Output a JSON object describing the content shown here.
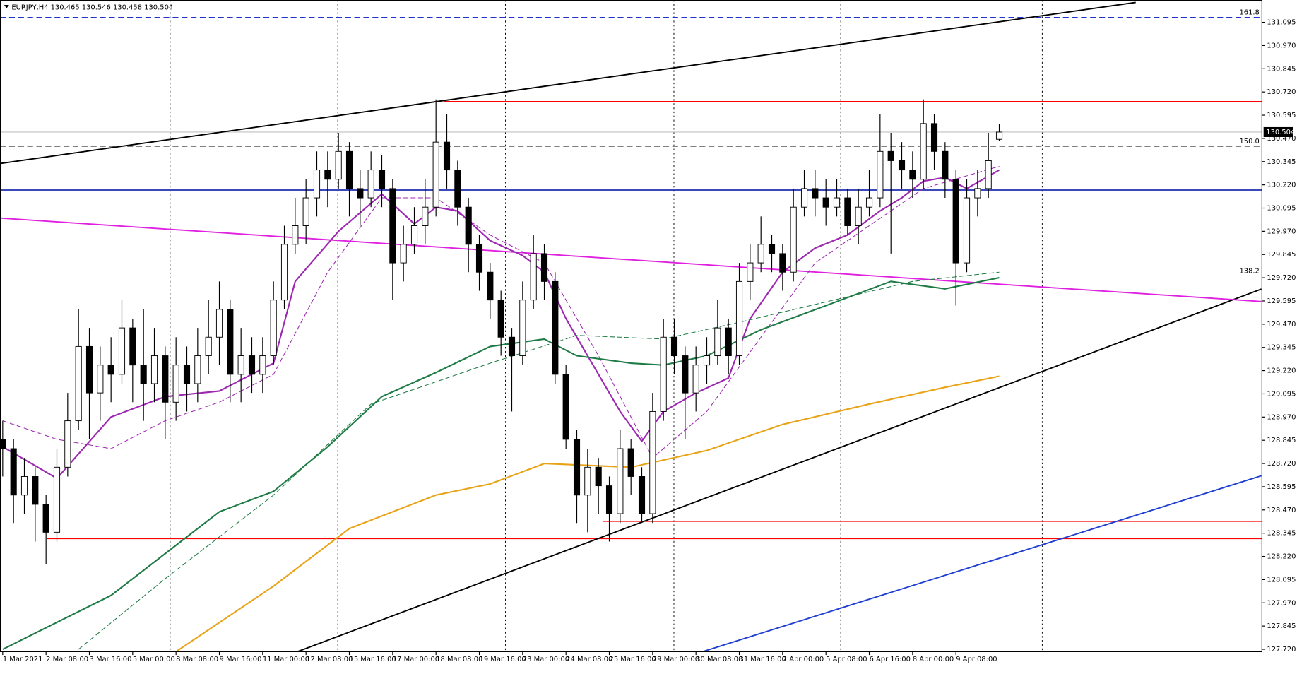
{
  "chart_data": {
    "type": "candlestick",
    "title": "EURJPY,H4  130.465 130.546 130.458 130.504",
    "categories": [
      "1 Mar 2021",
      "2 Mar 08:00",
      "3 Mar 16:00",
      "5 Mar 00:00",
      "8 Mar 08:00",
      "9 Mar 16:00",
      "11 Mar 00:00",
      "12 Mar 08:00",
      "15 Mar 16:00",
      "17 Mar 00:00",
      "18 Mar 08:00",
      "19 Mar 16:00",
      "23 Mar 00:00",
      "24 Mar 08:00",
      "25 Mar 16:00",
      "29 Mar 00:00",
      "30 Mar 08:00",
      "31 Mar 16:00",
      "2 Apr 00:00",
      "5 Apr 08:00",
      "6 Apr 16:00",
      "8 Apr 00:00",
      "9 Apr 08:00"
    ],
    "xlim": [
      -0.25,
      116.25
    ],
    "ylim": [
      127.707,
      131.215
    ],
    "yticks": [
      {
        "value": 131.095,
        "label": "131.095"
      },
      {
        "value": 130.97,
        "label": "130.970"
      },
      {
        "value": 130.845,
        "label": "130.845"
      },
      {
        "value": 130.72,
        "label": "130.720"
      },
      {
        "value": 130.595,
        "label": "130.595"
      },
      {
        "value": 130.47,
        "label": "130.470"
      },
      {
        "value": 130.345,
        "label": "130.345"
      },
      {
        "value": 130.22,
        "label": "130.220"
      },
      {
        "value": 130.095,
        "label": "130.095"
      },
      {
        "value": 129.97,
        "label": "129.970"
      },
      {
        "value": 129.845,
        "label": "129.845"
      },
      {
        "value": 129.72,
        "label": "129.720"
      },
      {
        "value": 129.595,
        "label": "129.595"
      },
      {
        "value": 129.47,
        "label": "129.470"
      },
      {
        "value": 129.345,
        "label": "129.345"
      },
      {
        "value": 129.22,
        "label": "129.220"
      },
      {
        "value": 129.095,
        "label": "129.095"
      },
      {
        "value": 128.97,
        "label": "128.970"
      },
      {
        "value": 128.845,
        "label": "128.845"
      },
      {
        "value": 128.72,
        "label": "128.720"
      },
      {
        "value": 128.595,
        "label": "128.595"
      },
      {
        "value": 128.47,
        "label": "128.470"
      },
      {
        "value": 128.345,
        "label": "128.345"
      },
      {
        "value": 128.22,
        "label": "128.220"
      },
      {
        "value": 128.095,
        "label": "128.095"
      },
      {
        "value": 127.97,
        "label": "127.970"
      },
      {
        "value": 127.845,
        "label": "127.845"
      },
      {
        "value": 127.72,
        "label": "127.720"
      }
    ],
    "up_color": "#ffffff",
    "down_color": "#000000",
    "candles": [
      [
        128.85,
        128.95,
        128.65,
        128.8
      ],
      [
        128.8,
        128.85,
        128.4,
        128.55
      ],
      [
        128.55,
        128.75,
        128.45,
        128.65
      ],
      [
        128.65,
        128.7,
        128.3,
        128.5
      ],
      [
        128.5,
        128.55,
        128.18,
        128.35
      ],
      [
        128.35,
        128.8,
        128.3,
        128.7
      ],
      [
        128.7,
        129.1,
        128.65,
        128.95
      ],
      [
        128.95,
        129.55,
        128.9,
        129.35
      ],
      [
        129.35,
        129.45,
        128.85,
        129.1
      ],
      [
        129.1,
        129.35,
        128.95,
        129.25
      ],
      [
        129.25,
        129.4,
        129.05,
        129.2
      ],
      [
        129.2,
        129.6,
        129.15,
        129.45
      ],
      [
        129.45,
        129.5,
        129.05,
        129.25
      ],
      [
        129.25,
        129.55,
        128.95,
        129.15
      ],
      [
        129.15,
        129.45,
        129.05,
        129.3
      ],
      [
        129.3,
        129.35,
        128.85,
        129.05
      ],
      [
        129.05,
        129.4,
        128.95,
        129.25
      ],
      [
        129.25,
        129.35,
        129.0,
        129.15
      ],
      [
        129.15,
        129.45,
        129.05,
        129.3
      ],
      [
        129.3,
        129.6,
        129.2,
        129.4
      ],
      [
        129.4,
        129.7,
        129.25,
        129.55
      ],
      [
        129.55,
        129.6,
        129.05,
        129.2
      ],
      [
        129.2,
        129.45,
        129.05,
        129.3
      ],
      [
        129.3,
        129.4,
        129.1,
        129.2
      ],
      [
        129.2,
        129.4,
        129.1,
        129.3
      ],
      [
        129.3,
        129.7,
        129.25,
        129.6
      ],
      [
        129.6,
        130.0,
        129.55,
        129.9
      ],
      [
        129.9,
        130.15,
        129.85,
        130.0
      ],
      [
        130.0,
        130.25,
        129.9,
        130.15
      ],
      [
        130.15,
        130.4,
        130.05,
        130.3
      ],
      [
        130.3,
        130.4,
        130.1,
        130.25
      ],
      [
        130.25,
        130.5,
        130.2,
        130.4
      ],
      [
        130.4,
        130.45,
        130.05,
        130.2
      ],
      [
        130.2,
        130.3,
        130.0,
        130.15
      ],
      [
        130.15,
        130.4,
        130.1,
        130.3
      ],
      [
        130.3,
        130.38,
        130.1,
        130.2
      ],
      [
        130.2,
        130.25,
        129.6,
        129.8
      ],
      [
        129.8,
        130.0,
        129.7,
        129.9
      ],
      [
        129.9,
        130.1,
        129.85,
        130.0
      ],
      [
        130.0,
        130.25,
        129.9,
        130.1
      ],
      [
        130.1,
        130.68,
        130.05,
        130.45
      ],
      [
        130.45,
        130.6,
        130.2,
        130.3
      ],
      [
        130.3,
        130.35,
        130.0,
        130.1
      ],
      [
        130.1,
        130.15,
        129.75,
        129.9
      ],
      [
        129.9,
        129.95,
        129.65,
        129.75
      ],
      [
        129.75,
        129.8,
        129.5,
        129.6
      ],
      [
        129.6,
        129.65,
        129.3,
        129.4
      ],
      [
        129.4,
        129.45,
        129.0,
        129.3
      ],
      [
        129.3,
        129.7,
        129.25,
        129.6
      ],
      [
        129.6,
        129.95,
        129.55,
        129.85
      ],
      [
        129.85,
        129.9,
        129.6,
        129.7
      ],
      [
        129.7,
        129.75,
        129.15,
        129.2
      ],
      [
        129.2,
        129.25,
        128.8,
        128.85
      ],
      [
        128.85,
        128.9,
        128.4,
        128.55
      ],
      [
        128.55,
        128.8,
        128.35,
        128.7
      ],
      [
        128.7,
        128.75,
        128.45,
        128.6
      ],
      [
        128.6,
        128.65,
        128.3,
        128.45
      ],
      [
        128.45,
        128.9,
        128.4,
        128.8
      ],
      [
        128.8,
        128.85,
        128.55,
        128.65
      ],
      [
        128.65,
        128.7,
        128.4,
        128.45
      ],
      [
        128.45,
        129.1,
        128.4,
        129.0
      ],
      [
        129.0,
        129.5,
        128.95,
        129.4
      ],
      [
        129.4,
        129.5,
        129.2,
        129.3
      ],
      [
        129.3,
        129.35,
        128.85,
        129.1
      ],
      [
        129.1,
        129.35,
        129.0,
        129.25
      ],
      [
        129.25,
        129.4,
        129.15,
        129.3
      ],
      [
        129.3,
        129.6,
        129.25,
        129.45
      ],
      [
        129.45,
        129.5,
        129.2,
        129.3
      ],
      [
        129.3,
        129.8,
        129.25,
        129.7
      ],
      [
        129.7,
        129.9,
        129.6,
        129.8
      ],
      [
        129.8,
        130.05,
        129.75,
        129.9
      ],
      [
        129.9,
        129.95,
        129.75,
        129.85
      ],
      [
        129.85,
        129.9,
        129.65,
        129.75
      ],
      [
        129.75,
        130.2,
        129.7,
        130.1
      ],
      [
        130.1,
        130.3,
        130.05,
        130.2
      ],
      [
        130.2,
        130.3,
        130.05,
        130.15
      ],
      [
        130.15,
        130.25,
        130.0,
        130.1
      ],
      [
        130.1,
        130.25,
        130.05,
        130.15
      ],
      [
        130.15,
        130.2,
        129.95,
        130.0
      ],
      [
        130.0,
        130.2,
        129.9,
        130.1
      ],
      [
        130.1,
        130.3,
        130.05,
        130.15
      ],
      [
        130.15,
        130.6,
        130.1,
        130.4
      ],
      [
        130.4,
        130.5,
        129.85,
        130.35
      ],
      [
        130.35,
        130.45,
        130.2,
        130.3
      ],
      [
        130.3,
        130.4,
        130.15,
        130.25
      ],
      [
        130.25,
        130.68,
        130.2,
        130.55
      ],
      [
        130.55,
        130.6,
        130.3,
        130.4
      ],
      [
        130.4,
        130.45,
        130.15,
        130.25
      ],
      [
        130.25,
        130.3,
        129.57,
        129.8
      ],
      [
        129.8,
        130.25,
        129.75,
        130.15
      ],
      [
        130.15,
        130.3,
        130.05,
        130.2
      ],
      [
        130.2,
        130.5,
        130.15,
        130.35
      ],
      [
        130.465,
        130.546,
        130.458,
        130.504
      ]
    ],
    "series": [
      {
        "color": "#9c27b0",
        "dash": false,
        "x": [
          0,
          5,
          10,
          15,
          20,
          25,
          27,
          31,
          35,
          38,
          40,
          42,
          45,
          48,
          50,
          52,
          54,
          57,
          59,
          61,
          64,
          67,
          69,
          72,
          75,
          78,
          81,
          83,
          85,
          87,
          89,
          92
        ],
        "values": [
          128.81,
          128.64,
          128.97,
          129.08,
          129.11,
          129.26,
          129.7,
          129.97,
          130.17,
          130.01,
          130.1,
          130.08,
          129.92,
          129.84,
          129.75,
          129.5,
          129.3,
          129.0,
          128.84,
          129.0,
          129.1,
          129.18,
          129.5,
          129.75,
          129.88,
          129.95,
          130.08,
          130.15,
          130.24,
          130.26,
          130.2,
          130.3
        ]
      },
      {
        "color": "#9c27b0",
        "dash": true,
        "x": [
          0,
          5,
          10,
          15,
          20,
          25,
          30,
          35,
          40,
          45,
          50,
          55,
          60,
          65,
          70,
          75,
          80,
          85,
          92
        ],
        "values": [
          128.95,
          128.85,
          128.8,
          128.95,
          129.05,
          129.2,
          129.75,
          130.15,
          130.15,
          129.95,
          129.8,
          129.3,
          128.75,
          129.0,
          129.4,
          129.8,
          130.0,
          130.2,
          130.32
        ]
      },
      {
        "color": "#1e7b45",
        "dash": false,
        "x": [
          0,
          10,
          20,
          25,
          30,
          35,
          40,
          45,
          50,
          53,
          58,
          61,
          65,
          70,
          76,
          82,
          87,
          92
        ],
        "values": [
          127.72,
          128.01,
          128.46,
          128.57,
          128.81,
          129.08,
          129.21,
          129.35,
          129.39,
          129.3,
          129.26,
          129.25,
          129.3,
          129.44,
          129.57,
          129.7,
          129.66,
          129.72
        ]
      },
      {
        "color": "#1e7b45",
        "dash": true,
        "x": [
          7,
          15,
          25,
          34,
          45,
          53,
          61,
          68,
          76,
          84,
          92
        ],
        "values": [
          127.72,
          128.1,
          128.55,
          129.04,
          129.26,
          129.41,
          129.39,
          129.48,
          129.59,
          129.7,
          129.75
        ]
      },
      {
        "color": "#e8a317",
        "dash": false,
        "x": [
          16,
          25,
          32,
          40,
          45,
          50,
          58,
          65,
          72,
          80,
          87,
          92
        ],
        "values": [
          127.707,
          128.06,
          128.37,
          128.55,
          128.61,
          128.72,
          128.7,
          128.79,
          128.93,
          129.04,
          129.13,
          129.19
        ]
      }
    ],
    "levels": [
      {
        "value": 131.122,
        "color": "#2233cc",
        "dash": true,
        "label": "161.8"
      },
      {
        "value": 130.428,
        "color": "#000000",
        "dash": true,
        "label": "150.0"
      },
      {
        "value": 129.73,
        "color": "#2a8a2a",
        "dash": true,
        "label": "138.2"
      },
      {
        "value": 130.192,
        "color": "#1f2fb0",
        "dash": false
      },
      {
        "value": 130.668,
        "color": "#ff0000",
        "dash": false,
        "from": 40.7
      },
      {
        "value": 128.409,
        "color": "#ff0000",
        "dash": false,
        "from": 55.4
      },
      {
        "value": 128.316,
        "color": "#ff0000",
        "dash": false,
        "from": 4.1
      }
    ],
    "trendlines": [
      {
        "color": "#000000",
        "x": [
          -0.23,
          104.6
        ],
        "y": [
          130.335,
          131.202
        ]
      },
      {
        "color": "#000000",
        "x": [
          27.2,
          116.2
        ],
        "y": [
          127.707,
          129.659
        ]
      },
      {
        "color": "#e020e0",
        "x": [
          -0.23,
          116.2
        ],
        "y": [
          130.041,
          129.592
        ]
      },
      {
        "color": "#1f3fd0",
        "x": [
          64.6,
          116.2
        ],
        "y": [
          127.707,
          128.654
        ]
      }
    ]
  }
}
